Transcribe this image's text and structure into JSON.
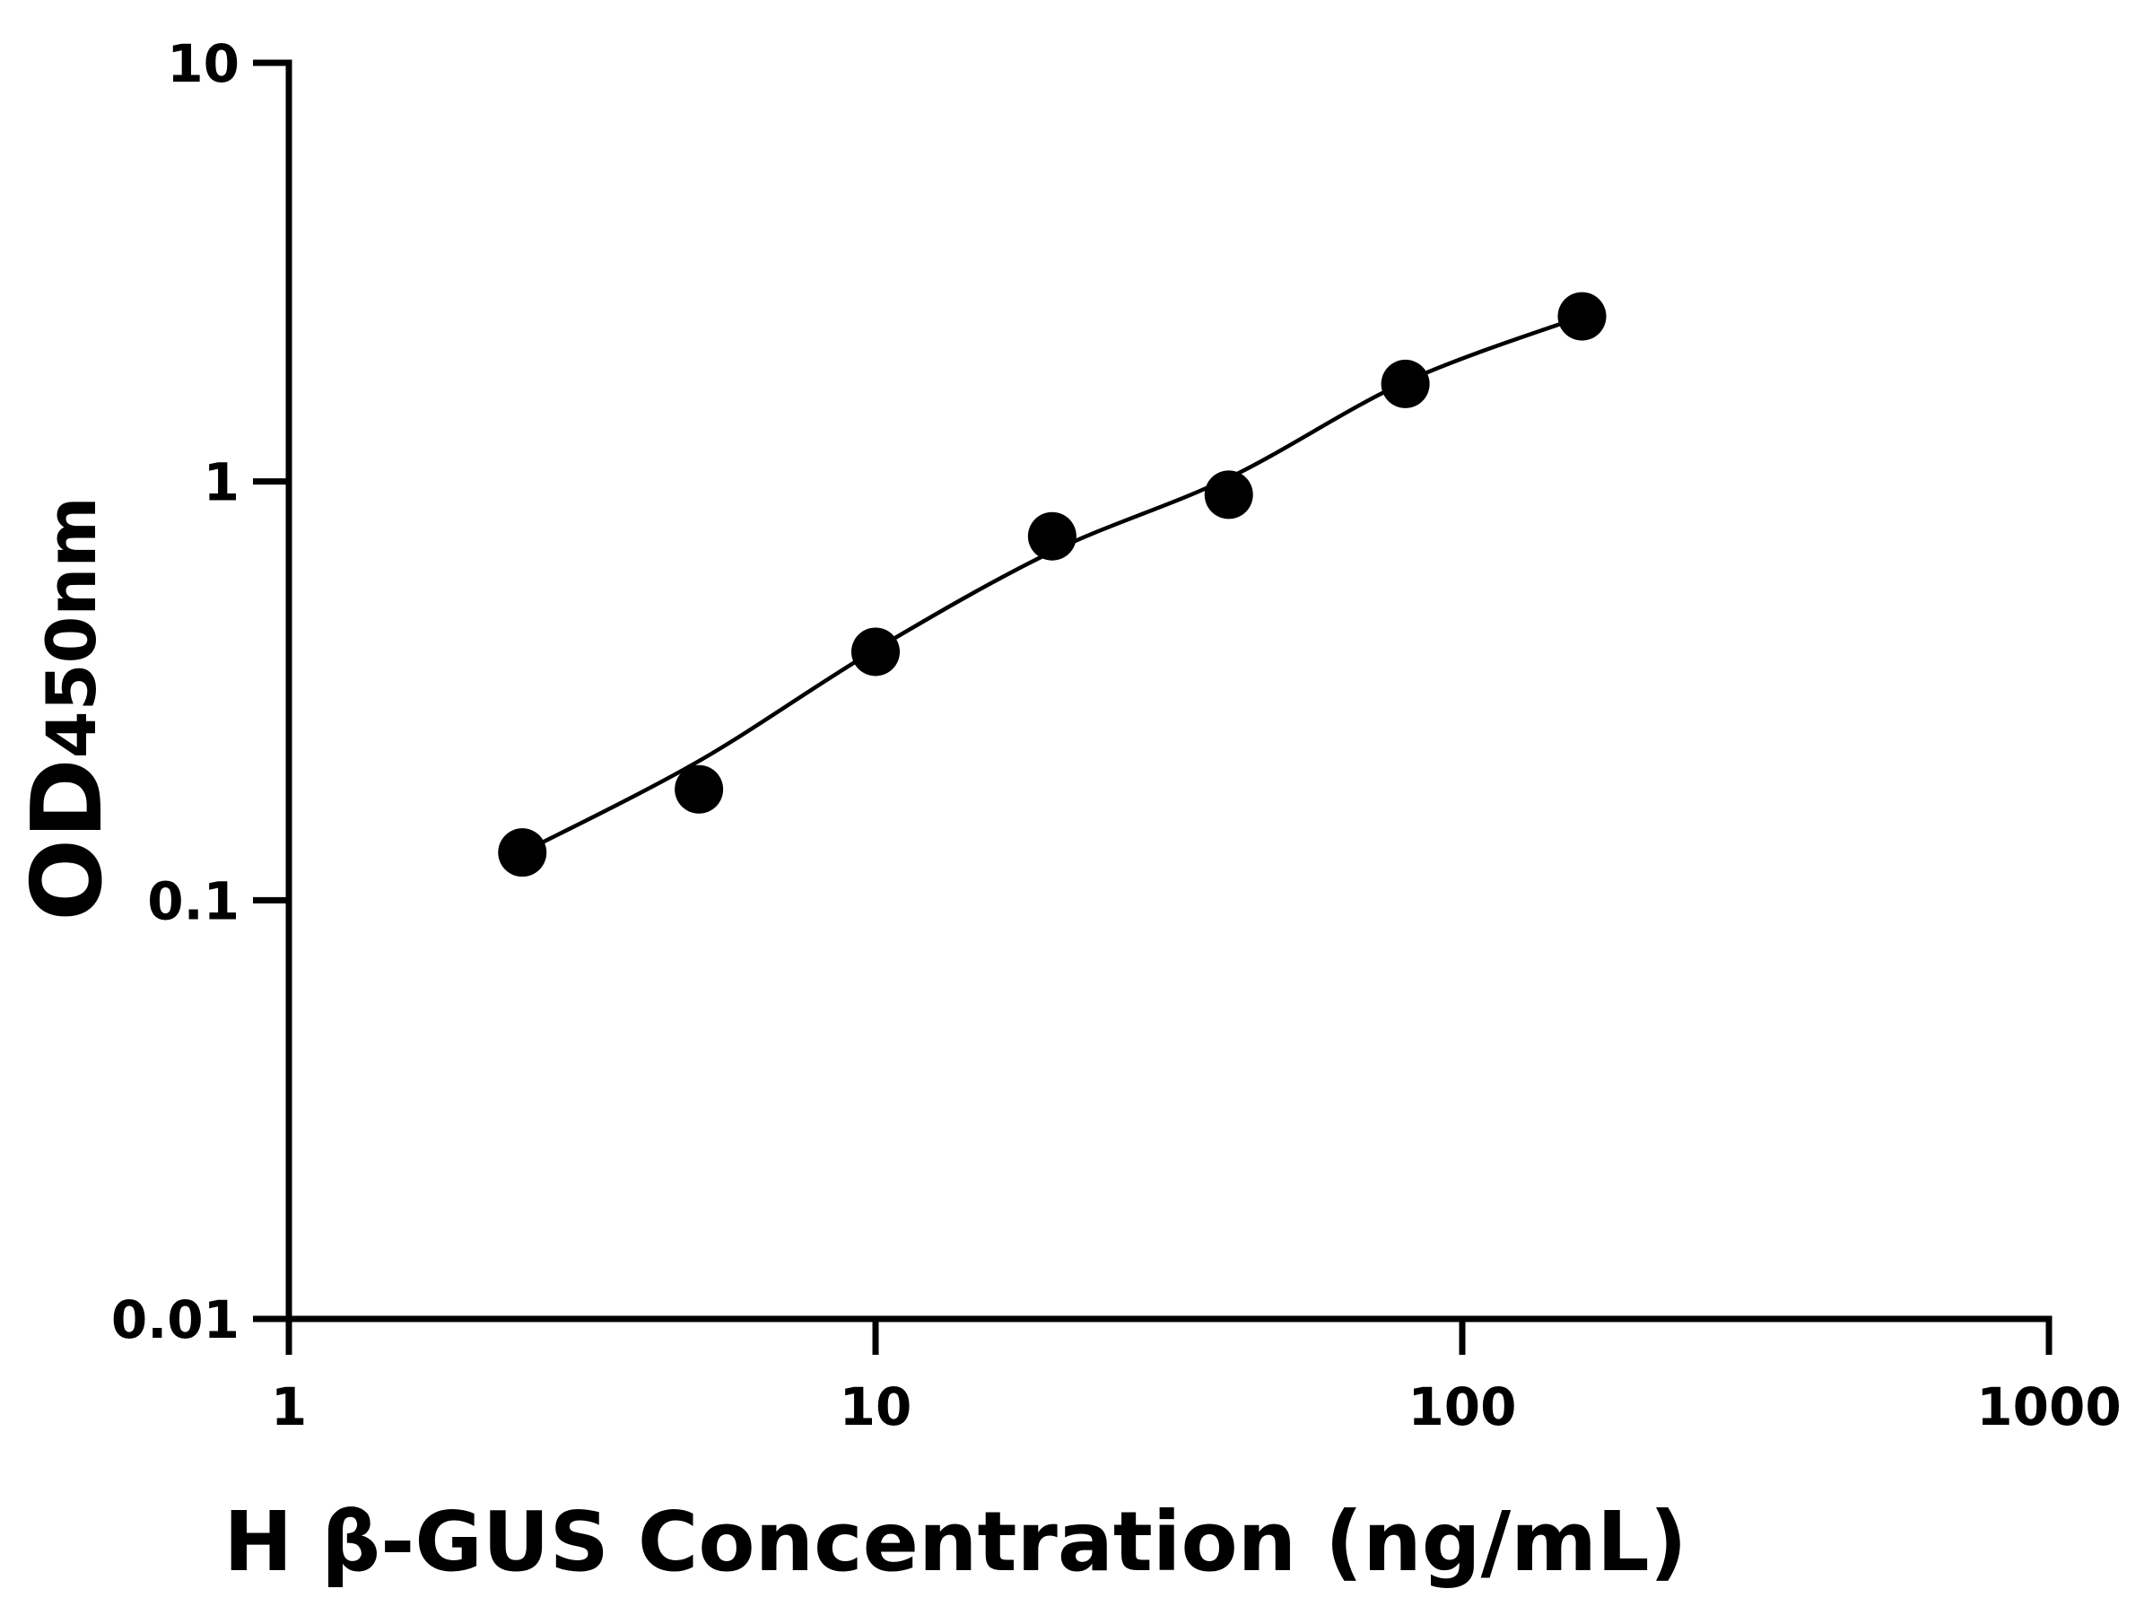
{
  "chart_data": {
    "type": "scatter",
    "x_label": "H β-GUS Concentration (ng/mL)",
    "y_label": "OD",
    "y_label_subscript": "450nm",
    "xscale": "log",
    "yscale": "log",
    "xlim": [
      1,
      1000
    ],
    "xticks": [
      1,
      10,
      100,
      1000
    ],
    "ylim": [
      0.01,
      10
    ],
    "yticks": [
      0.01,
      0.1,
      1,
      10
    ],
    "series": [
      {
        "color": "#000000",
        "x": [
          2.5,
          5,
          10,
          20,
          40,
          80,
          160
        ],
        "values": [
          0.13,
          0.184,
          0.392,
          0.74,
          0.93,
          1.71,
          2.48
        ]
      }
    ],
    "fit": {
      "color": "#000000",
      "x": [
        2.5,
        5,
        10,
        20,
        40,
        80,
        160
      ],
      "values": [
        0.13,
        0.215,
        0.397,
        0.68,
        1.02,
        1.73,
        2.48
      ]
    }
  }
}
